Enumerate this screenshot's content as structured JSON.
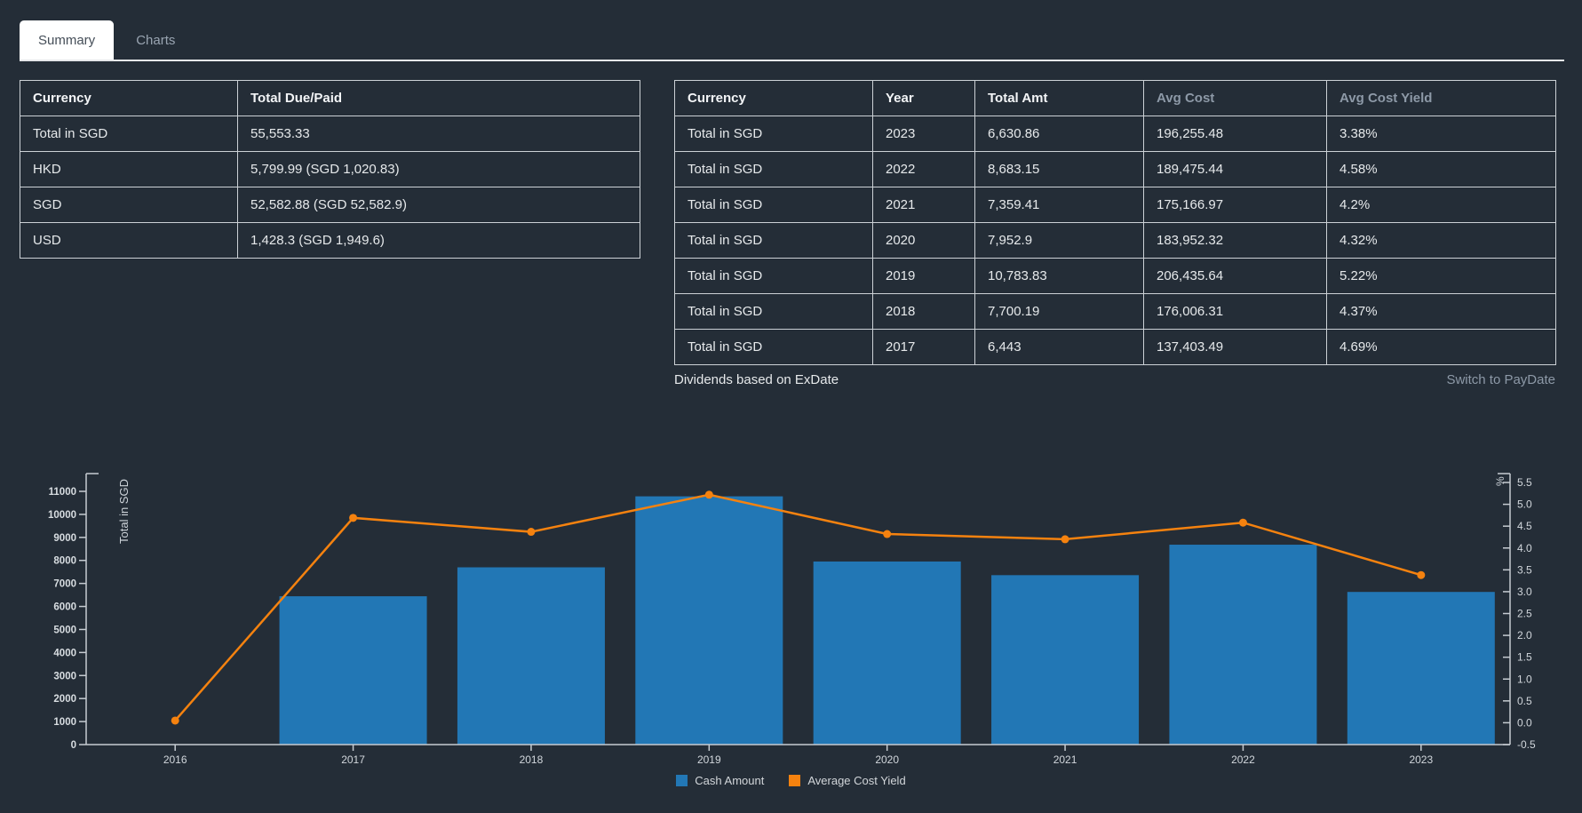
{
  "tabs": {
    "summary": "Summary",
    "charts": "Charts"
  },
  "left_table": {
    "headers": [
      "Currency",
      "Total Due/Paid"
    ],
    "rows": [
      [
        "Total in SGD",
        "55,553.33"
      ],
      [
        "HKD",
        "5,799.99 (SGD 1,020.83)"
      ],
      [
        "SGD",
        "52,582.88 (SGD 52,582.9)"
      ],
      [
        "USD",
        "1,428.3 (SGD 1,949.6)"
      ]
    ]
  },
  "right_table": {
    "headers": [
      "Currency",
      "Year",
      "Total Amt",
      "Avg Cost",
      "Avg Cost Yield"
    ],
    "muted_headers": [
      "Avg Cost",
      "Avg Cost Yield"
    ],
    "rows": [
      [
        "Total in SGD",
        "2023",
        "6,630.86",
        "196,255.48",
        "3.38%"
      ],
      [
        "Total in SGD",
        "2022",
        "8,683.15",
        "189,475.44",
        "4.58%"
      ],
      [
        "Total in SGD",
        "2021",
        "7,359.41",
        "175,166.97",
        "4.2%"
      ],
      [
        "Total in SGD",
        "2020",
        "7,952.9",
        "183,952.32",
        "4.32%"
      ],
      [
        "Total in SGD",
        "2019",
        "10,783.83",
        "206,435.64",
        "5.22%"
      ],
      [
        "Total in SGD",
        "2018",
        "7,700.19",
        "176,006.31",
        "4.37%"
      ],
      [
        "Total in SGD",
        "2017",
        "6,443",
        "137,403.49",
        "4.69%"
      ]
    ]
  },
  "footnote": {
    "left": "Dividends based on ExDate",
    "link": "Switch to PayDate"
  },
  "chart_data": {
    "type": "bar+line",
    "categories": [
      "2016",
      "2017",
      "2018",
      "2019",
      "2020",
      "2021",
      "2022",
      "2023"
    ],
    "series": [
      {
        "name": "Cash Amount",
        "type": "bar",
        "axis": "left",
        "color": "#2277b5",
        "values": [
          0,
          6443,
          7700.19,
          10783.83,
          7952.9,
          7359.41,
          8683.15,
          6630.86
        ]
      },
      {
        "name": "Average Cost Yield",
        "type": "line",
        "axis": "right",
        "color": "#f5820f",
        "values": [
          0.05,
          4.69,
          4.37,
          5.22,
          4.32,
          4.2,
          4.58,
          3.38
        ]
      }
    ],
    "left_axis": {
      "title": "Total in SGD",
      "min": 0,
      "max": 11000,
      "step": 1000
    },
    "right_axis": {
      "title": "%",
      "min": -0.5,
      "max": 5.5,
      "step": 0.5
    },
    "legend": [
      "Cash Amount",
      "Average Cost Yield"
    ],
    "legend_position": "bottom-center",
    "grid": false,
    "axis_color": "#c6ccd2"
  }
}
